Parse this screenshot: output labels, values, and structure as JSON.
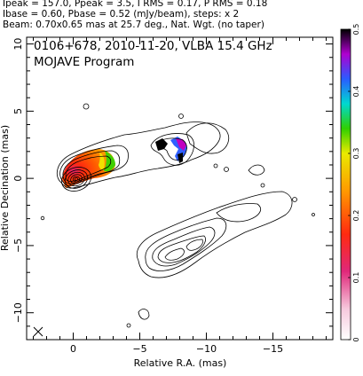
{
  "header": {
    "line1": "Ipeak = 157.0, Ppeak = 3.5, I RMS = 0.17, P RMS = 0.18",
    "line2": "Ibase = 0.60, Pbase = 0.52 (mJy/beam), steps: x 2",
    "line3": "Beam: 0.70x0.65 mas at 25.7 deg., Nat. Wgt. (no taper)"
  },
  "chart_data": {
    "type": "contour",
    "title": "0106+678, 2010-11-20, VLBA 15.4 GHz",
    "subtitle": "MOJAVE Program",
    "xlabel": "Relative R.A. (mas)",
    "ylabel": "Relative Decination (mas)",
    "xlim": [
      3.5,
      -19.5
    ],
    "ylim": [
      -12,
      10.5
    ],
    "x_ticks": [
      0,
      -5,
      -10,
      -15
    ],
    "x_tick_labels": [
      "0",
      "−5",
      "−10",
      "−15"
    ],
    "y_ticks": [
      10,
      5,
      0,
      -5,
      -10
    ],
    "y_tick_labels": [
      "10",
      "5",
      "0",
      "−5",
      "−10"
    ],
    "core": {
      "x": 0,
      "y": 0
    },
    "jet_upper": {
      "from": [
        0,
        0
      ],
      "to": [
        -7.5,
        2.8
      ]
    },
    "jet_lower": {
      "from": [
        -3.2,
        -6.5
      ],
      "to": [
        -13.5,
        -2.5
      ]
    },
    "colorbar": {
      "min": 0,
      "max": 0.5,
      "ticks": [
        0,
        0.1,
        0.2,
        0.3,
        0.4,
        0.5
      ],
      "tick_labels": [
        "0",
        "0.1",
        "0.2",
        "0.3",
        "0.4",
        "0.5"
      ]
    }
  }
}
